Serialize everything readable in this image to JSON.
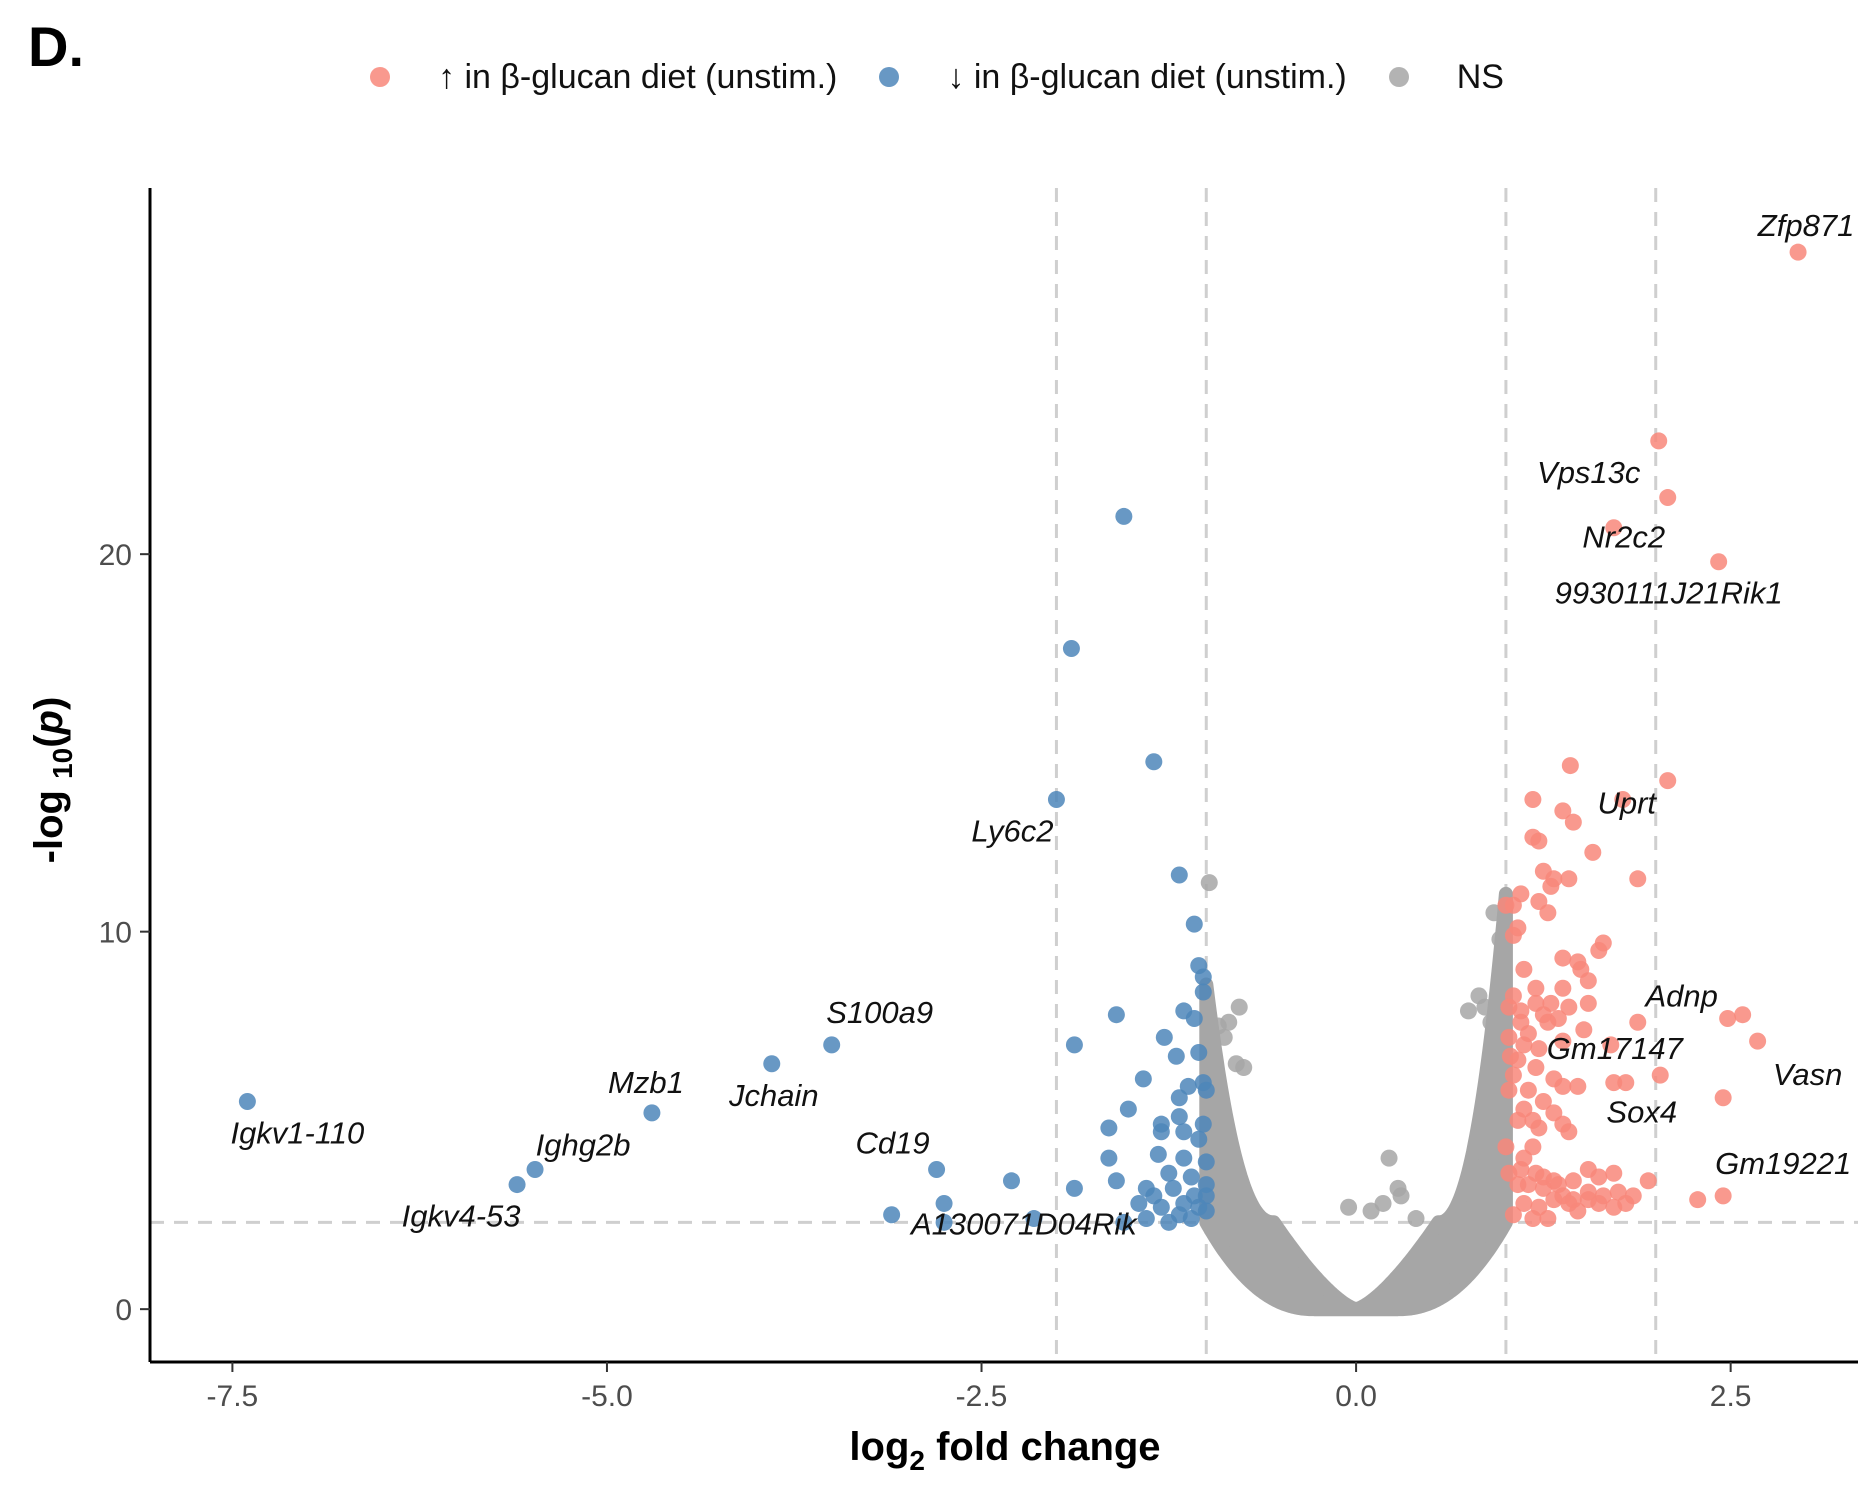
{
  "panel_label": "D.",
  "colors": {
    "up": "#F8877A",
    "down": "#4E86BA",
    "ns": "#A6A6A6",
    "threshold": "#CFCFCF"
  },
  "legend": [
    {
      "key": "up",
      "label": "↑ in β-glucan  diet (unstim.)"
    },
    {
      "key": "down",
      "label": "↓ in β-glucan  diet (unstim.)"
    },
    {
      "key": "ns",
      "label": "NS"
    }
  ],
  "chart_data": {
    "type": "scatter",
    "title": "",
    "xlabel": "log2 fold change",
    "xlabel_parts": {
      "pre": "log",
      "sub": "2",
      "post": " fold change"
    },
    "ylabel": "-log10(p)",
    "ylabel_parts": {
      "pre": "-log ",
      "sub": "10",
      "mid": "(",
      "italic": "p",
      "post": ")"
    },
    "xlim": [
      -8.05,
      3.35
    ],
    "ylim": [
      -1.4,
      29.7
    ],
    "x_ticks": [
      -7.5,
      -5.0,
      -2.5,
      0.0,
      2.5
    ],
    "x_tick_labels": [
      "-7.5",
      "-5.0",
      "-2.5",
      "0.0",
      "2.5"
    ],
    "y_ticks": [
      0,
      10,
      20
    ],
    "y_tick_labels": [
      "0",
      "10",
      "20"
    ],
    "grid": false,
    "legend_position": "top",
    "thresholds": {
      "fold_change_x": [
        -2,
        -1,
        1,
        2
      ],
      "p_value_y": 2.3
    },
    "series": [
      {
        "name": "↑ in β-glucan  diet (unstim.)",
        "key": "up",
        "points": [
          [
            2.95,
            28.0
          ],
          [
            2.02,
            23.0
          ],
          [
            2.08,
            21.5
          ],
          [
            1.72,
            20.7
          ],
          [
            2.42,
            19.8
          ],
          [
            1.43,
            14.4
          ],
          [
            2.08,
            14.0
          ],
          [
            1.18,
            13.5
          ],
          [
            1.78,
            13.5
          ],
          [
            1.38,
            13.2
          ],
          [
            1.45,
            12.9
          ],
          [
            1.18,
            12.5
          ],
          [
            1.22,
            12.4
          ],
          [
            1.58,
            12.1
          ],
          [
            1.25,
            11.6
          ],
          [
            1.32,
            11.4
          ],
          [
            1.42,
            11.4
          ],
          [
            1.88,
            11.4
          ],
          [
            1.3,
            11.2
          ],
          [
            1.1,
            11.0
          ],
          [
            1.22,
            10.8
          ],
          [
            1.0,
            10.7
          ],
          [
            1.05,
            10.7
          ],
          [
            1.28,
            10.5
          ],
          [
            1.08,
            10.1
          ],
          [
            1.05,
            9.9
          ],
          [
            1.65,
            9.7
          ],
          [
            1.62,
            9.5
          ],
          [
            1.38,
            9.3
          ],
          [
            1.48,
            9.2
          ],
          [
            1.5,
            9.0
          ],
          [
            1.55,
            8.7
          ],
          [
            1.2,
            8.5
          ],
          [
            1.38,
            8.5
          ],
          [
            1.05,
            8.3
          ],
          [
            1.2,
            8.1
          ],
          [
            1.3,
            8.1
          ],
          [
            1.42,
            8.0
          ],
          [
            1.55,
            8.1
          ],
          [
            1.02,
            8.0
          ],
          [
            1.1,
            7.9
          ],
          [
            1.25,
            7.8
          ],
          [
            1.35,
            7.7
          ],
          [
            2.48,
            7.7
          ],
          [
            2.58,
            7.8
          ],
          [
            1.1,
            7.6
          ],
          [
            1.28,
            7.6
          ],
          [
            1.88,
            7.6
          ],
          [
            1.52,
            7.4
          ],
          [
            1.02,
            7.2
          ],
          [
            1.12,
            7.0
          ],
          [
            1.22,
            6.9
          ],
          [
            1.38,
            7.1
          ],
          [
            1.7,
            7.0
          ],
          [
            2.68,
            7.1
          ],
          [
            1.08,
            6.6
          ],
          [
            1.2,
            6.4
          ],
          [
            1.05,
            6.2
          ],
          [
            1.38,
            5.9
          ],
          [
            1.48,
            5.9
          ],
          [
            1.72,
            6.0
          ],
          [
            1.8,
            6.0
          ],
          [
            2.03,
            6.2
          ],
          [
            1.02,
            5.8
          ],
          [
            1.15,
            5.8
          ],
          [
            1.25,
            5.5
          ],
          [
            2.45,
            5.6
          ],
          [
            1.12,
            5.3
          ],
          [
            1.32,
            5.2
          ],
          [
            1.08,
            5.0
          ],
          [
            1.22,
            4.8
          ],
          [
            1.38,
            4.9
          ],
          [
            1.42,
            4.7
          ],
          [
            1.18,
            4.3
          ],
          [
            1.1,
            3.7
          ],
          [
            1.2,
            3.6
          ],
          [
            1.25,
            3.5
          ],
          [
            1.45,
            3.4
          ],
          [
            1.55,
            3.7
          ],
          [
            1.62,
            3.5
          ],
          [
            1.72,
            3.6
          ],
          [
            1.32,
            3.4
          ],
          [
            1.02,
            3.6
          ],
          [
            1.08,
            3.3
          ],
          [
            1.15,
            3.3
          ],
          [
            1.25,
            3.2
          ],
          [
            1.38,
            3.0
          ],
          [
            1.45,
            2.9
          ],
          [
            1.55,
            3.1
          ],
          [
            1.65,
            3.0
          ],
          [
            1.75,
            3.1
          ],
          [
            1.85,
            3.0
          ],
          [
            1.95,
            3.4
          ],
          [
            2.28,
            2.9
          ],
          [
            2.45,
            3.0
          ],
          [
            1.12,
            2.8
          ],
          [
            1.22,
            2.7
          ],
          [
            1.32,
            2.9
          ],
          [
            1.48,
            2.6
          ],
          [
            1.62,
            2.8
          ],
          [
            1.72,
            2.7
          ],
          [
            1.8,
            2.8
          ],
          [
            1.18,
            2.4
          ],
          [
            1.28,
            2.4
          ],
          [
            1.05,
            2.5
          ],
          [
            1.42,
            2.8
          ],
          [
            1.55,
            2.9
          ],
          [
            1.35,
            3.3
          ],
          [
            1.12,
            4.0
          ],
          [
            1.0,
            4.3
          ],
          [
            1.18,
            5.0
          ],
          [
            1.03,
            6.7
          ],
          [
            1.15,
            7.3
          ],
          [
            1.32,
            6.1
          ],
          [
            1.12,
            9.0
          ]
        ]
      },
      {
        "name": "↓ in β-glucan  diet (unstim.)",
        "key": "down",
        "points": [
          [
            -7.4,
            5.5
          ],
          [
            -4.7,
            5.2
          ],
          [
            -3.9,
            6.5
          ],
          [
            -3.5,
            7.0
          ],
          [
            -5.6,
            3.3
          ],
          [
            -5.48,
            3.7
          ],
          [
            -2.8,
            3.7
          ],
          [
            -2.3,
            3.4
          ],
          [
            -3.1,
            2.5
          ],
          [
            -2.75,
            2.8
          ],
          [
            -2.75,
            2.3
          ],
          [
            -1.55,
            21.0
          ],
          [
            -1.9,
            17.5
          ],
          [
            -1.35,
            14.5
          ],
          [
            -2.0,
            13.5
          ],
          [
            -1.18,
            11.5
          ],
          [
            -1.08,
            10.2
          ],
          [
            -1.05,
            9.1
          ],
          [
            -1.02,
            8.8
          ],
          [
            -1.02,
            8.4
          ],
          [
            -1.15,
            7.9
          ],
          [
            -1.08,
            7.7
          ],
          [
            -1.6,
            7.8
          ],
          [
            -1.88,
            7.0
          ],
          [
            -1.28,
            7.2
          ],
          [
            -1.2,
            6.7
          ],
          [
            -1.05,
            6.8
          ],
          [
            -1.42,
            6.1
          ],
          [
            -1.02,
            6.0
          ],
          [
            -1.12,
            5.9
          ],
          [
            -1.0,
            5.8
          ],
          [
            -1.18,
            5.6
          ],
          [
            -1.52,
            5.3
          ],
          [
            -1.18,
            5.1
          ],
          [
            -1.3,
            4.9
          ],
          [
            -1.02,
            4.9
          ],
          [
            -1.15,
            4.7
          ],
          [
            -1.3,
            4.7
          ],
          [
            -1.65,
            4.8
          ],
          [
            -1.65,
            4.0
          ],
          [
            -1.05,
            4.5
          ],
          [
            -1.32,
            4.1
          ],
          [
            -1.15,
            4.0
          ],
          [
            -1.0,
            3.9
          ],
          [
            -1.25,
            3.6
          ],
          [
            -1.1,
            3.5
          ],
          [
            -1.0,
            3.3
          ],
          [
            -1.4,
            3.2
          ],
          [
            -1.22,
            3.2
          ],
          [
            -1.35,
            3.0
          ],
          [
            -1.08,
            3.0
          ],
          [
            -1.0,
            3.0
          ],
          [
            -1.15,
            2.8
          ],
          [
            -1.3,
            2.7
          ],
          [
            -1.05,
            2.7
          ],
          [
            -1.0,
            2.6
          ],
          [
            -1.4,
            2.4
          ],
          [
            -1.18,
            2.5
          ],
          [
            -1.1,
            2.4
          ],
          [
            -1.45,
            2.8
          ],
          [
            -1.88,
            3.2
          ],
          [
            -2.15,
            2.4
          ],
          [
            -1.55,
            2.3
          ],
          [
            -1.25,
            2.3
          ],
          [
            -1.6,
            3.4
          ]
        ]
      }
    ],
    "ns": {
      "name": "NS",
      "key": "ns",
      "points": [
        [
          -0.98,
          11.3
        ],
        [
          -0.78,
          8.0
        ],
        [
          -0.85,
          7.6
        ],
        [
          -0.92,
          7.5
        ],
        [
          -0.88,
          7.2
        ],
        [
          -0.8,
          6.5
        ],
        [
          -0.75,
          6.4
        ],
        [
          0.92,
          10.5
        ],
        [
          0.96,
          9.8
        ],
        [
          0.98,
          8.9
        ],
        [
          0.82,
          8.3
        ],
        [
          0.86,
          8.0
        ],
        [
          0.75,
          7.9
        ],
        [
          0.9,
          7.6
        ],
        [
          0.22,
          4.0
        ],
        [
          0.28,
          3.2
        ],
        [
          0.3,
          3.0
        ],
        [
          0.18,
          2.8
        ],
        [
          -0.05,
          2.7
        ],
        [
          0.1,
          2.6
        ],
        [
          0.4,
          2.4
        ]
      ]
    },
    "labels": [
      {
        "text": "Zfp871",
        "x": 2.95,
        "y": 28.0
      },
      {
        "text": "Vps13c",
        "x": 2.02,
        "y": 23.0
      },
      {
        "text": "Nr2c2",
        "x": 1.72,
        "y": 20.7
      },
      {
        "text": "9930111J21Rik1",
        "x": 2.42,
        "y": 19.8
      },
      {
        "text": "Uprt",
        "x": 1.78,
        "y": 13.5
      },
      {
        "text": "Adnp",
        "x": 2.48,
        "y": 7.7
      },
      {
        "text": "Gm17147",
        "x": 1.7,
        "y": 7.0
      },
      {
        "text": "Vasn",
        "x": 2.68,
        "y": 7.1
      },
      {
        "text": "Sox4",
        "x": 1.8,
        "y": 6.0
      },
      {
        "text": "Gm19221",
        "x": 2.45,
        "y": 3.0
      },
      {
        "text": "Ly6c2",
        "x": -2.0,
        "y": 13.5
      },
      {
        "text": "S100a9",
        "x": -3.5,
        "y": 7.0
      },
      {
        "text": "Mzb1",
        "x": -4.7,
        "y": 5.2
      },
      {
        "text": "Jchain",
        "x": -3.9,
        "y": 6.5
      },
      {
        "text": "Igkv1-110",
        "x": -7.4,
        "y": 5.5
      },
      {
        "text": "Ighg2b",
        "x": -5.48,
        "y": 3.7
      },
      {
        "text": "Cd19",
        "x": -2.8,
        "y": 3.7
      },
      {
        "text": "Igkv4-53",
        "x": -5.6,
        "y": 3.3
      },
      {
        "text": "A130071D04Rik",
        "x": -1.55,
        "y": 2.3
      }
    ]
  }
}
